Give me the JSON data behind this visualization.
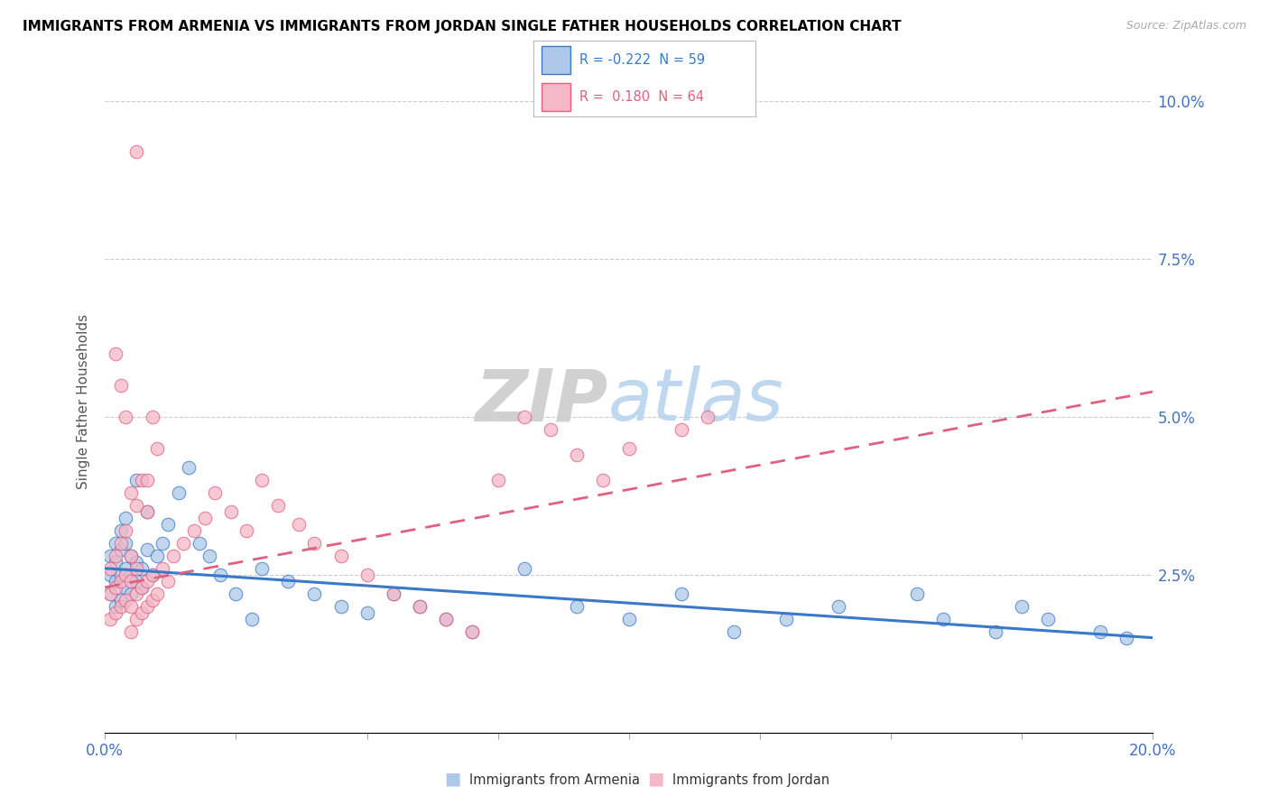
{
  "title": "IMMIGRANTS FROM ARMENIA VS IMMIGRANTS FROM JORDAN SINGLE FATHER HOUSEHOLDS CORRELATION CHART",
  "source": "Source: ZipAtlas.com",
  "ylabel": "Single Father Households",
  "xlim": [
    0.0,
    0.2
  ],
  "ylim": [
    0.0,
    0.105
  ],
  "xticks": [
    0.0,
    0.025,
    0.05,
    0.075,
    0.1,
    0.125,
    0.15,
    0.175,
    0.2
  ],
  "yticks": [
    0.0,
    0.025,
    0.05,
    0.075,
    0.1
  ],
  "legend_R_armenia": "-0.222",
  "legend_N_armenia": "59",
  "legend_R_jordan": "0.180",
  "legend_N_jordan": "64",
  "color_armenia": "#adc8e8",
  "color_jordan": "#f4b8c8",
  "color_armenia_line": "#3a78c9",
  "color_jordan_line": "#e06080",
  "armenia_x": [
    0.001,
    0.001,
    0.001,
    0.002,
    0.002,
    0.002,
    0.002,
    0.003,
    0.003,
    0.003,
    0.003,
    0.004,
    0.004,
    0.004,
    0.004,
    0.005,
    0.005,
    0.005,
    0.006,
    0.006,
    0.006,
    0.007,
    0.007,
    0.008,
    0.008,
    0.009,
    0.01,
    0.011,
    0.012,
    0.014,
    0.016,
    0.018,
    0.02,
    0.022,
    0.025,
    0.028,
    0.03,
    0.035,
    0.04,
    0.045,
    0.05,
    0.055,
    0.06,
    0.065,
    0.07,
    0.08,
    0.09,
    0.1,
    0.11,
    0.12,
    0.13,
    0.14,
    0.155,
    0.16,
    0.17,
    0.175,
    0.18,
    0.19,
    0.195
  ],
  "armenia_y": [
    0.022,
    0.025,
    0.028,
    0.02,
    0.024,
    0.027,
    0.03,
    0.021,
    0.025,
    0.029,
    0.032,
    0.023,
    0.026,
    0.03,
    0.034,
    0.022,
    0.025,
    0.028,
    0.024,
    0.027,
    0.04,
    0.023,
    0.026,
    0.029,
    0.035,
    0.025,
    0.028,
    0.03,
    0.033,
    0.038,
    0.042,
    0.03,
    0.028,
    0.025,
    0.022,
    0.018,
    0.026,
    0.024,
    0.022,
    0.02,
    0.019,
    0.022,
    0.02,
    0.018,
    0.016,
    0.026,
    0.02,
    0.018,
    0.022,
    0.016,
    0.018,
    0.02,
    0.022,
    0.018,
    0.016,
    0.02,
    0.018,
    0.016,
    0.015
  ],
  "jordan_x": [
    0.001,
    0.001,
    0.001,
    0.002,
    0.002,
    0.002,
    0.003,
    0.003,
    0.003,
    0.004,
    0.004,
    0.004,
    0.005,
    0.005,
    0.005,
    0.005,
    0.006,
    0.006,
    0.006,
    0.007,
    0.007,
    0.008,
    0.008,
    0.009,
    0.009,
    0.01,
    0.011,
    0.012,
    0.013,
    0.015,
    0.017,
    0.019,
    0.021,
    0.024,
    0.027,
    0.03,
    0.033,
    0.037,
    0.04,
    0.045,
    0.05,
    0.055,
    0.06,
    0.065,
    0.07,
    0.075,
    0.08,
    0.085,
    0.09,
    0.095,
    0.1,
    0.11,
    0.115,
    0.008,
    0.005,
    0.006,
    0.007,
    0.004,
    0.003,
    0.002,
    0.009,
    0.01,
    0.008,
    0.006
  ],
  "jordan_y": [
    0.018,
    0.022,
    0.026,
    0.019,
    0.023,
    0.028,
    0.02,
    0.024,
    0.03,
    0.021,
    0.025,
    0.032,
    0.016,
    0.02,
    0.024,
    0.028,
    0.018,
    0.022,
    0.026,
    0.019,
    0.023,
    0.02,
    0.024,
    0.021,
    0.025,
    0.022,
    0.026,
    0.024,
    0.028,
    0.03,
    0.032,
    0.034,
    0.038,
    0.035,
    0.032,
    0.04,
    0.036,
    0.033,
    0.03,
    0.028,
    0.025,
    0.022,
    0.02,
    0.018,
    0.016,
    0.04,
    0.05,
    0.048,
    0.044,
    0.04,
    0.045,
    0.048,
    0.05,
    0.035,
    0.038,
    0.036,
    0.04,
    0.05,
    0.055,
    0.06,
    0.05,
    0.045,
    0.04,
    0.092
  ]
}
